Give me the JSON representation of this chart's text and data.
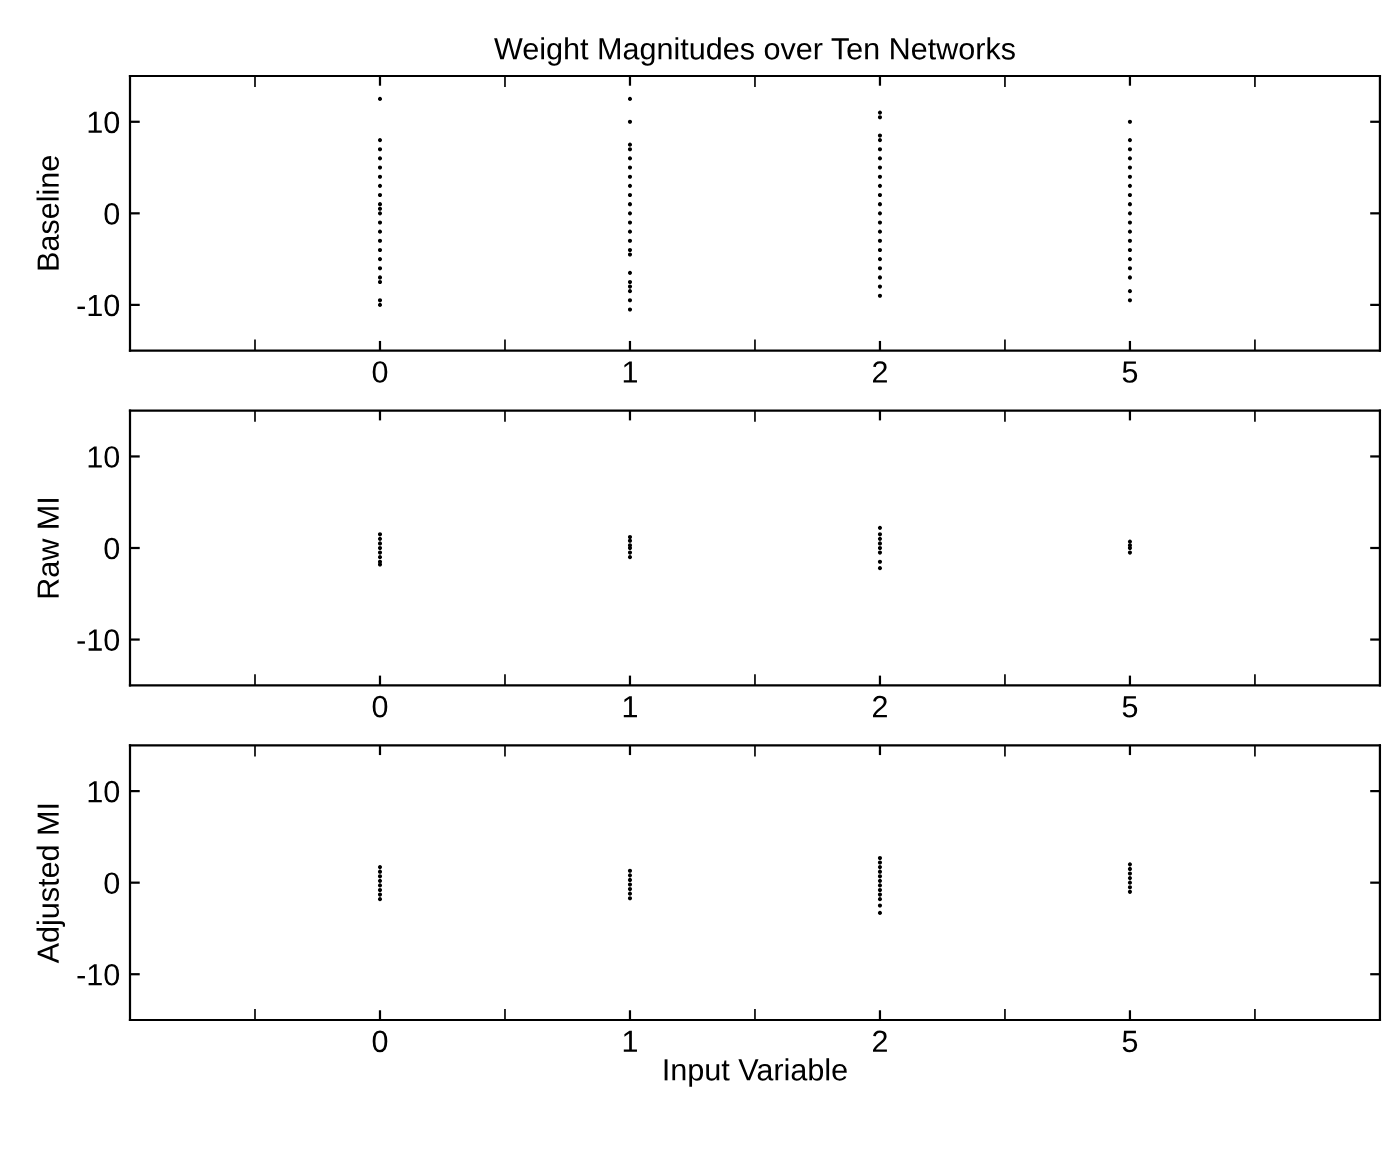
{
  "chart_data": [
    {
      "type": "scatter",
      "title": "Weight Magnitudes over Ten Networks",
      "ylabel": "Baseline",
      "categories": [
        "0",
        "1",
        "2",
        "5"
      ],
      "ylim": [
        -15,
        15
      ],
      "yticks": [
        -10,
        0,
        10
      ],
      "grid": false,
      "legend": false,
      "marker": "circle",
      "series": [
        {
          "color": "#000000",
          "x": [
            "0",
            "0",
            "0",
            "0",
            "0",
            "0",
            "0",
            "0",
            "0",
            "0",
            "0",
            "0",
            "0",
            "0",
            "0",
            "0",
            "0",
            "0",
            "0",
            "0",
            "0",
            "1",
            "1",
            "1",
            "1",
            "1",
            "1",
            "1",
            "1",
            "1",
            "1",
            "1",
            "1",
            "1",
            "1",
            "1",
            "1",
            "1",
            "1",
            "1",
            "1",
            "1",
            "1",
            "2",
            "2",
            "2",
            "2",
            "2",
            "2",
            "2",
            "2",
            "2",
            "2",
            "2",
            "2",
            "2",
            "2",
            "2",
            "2",
            "2",
            "2",
            "2",
            "2",
            "2",
            "5",
            "5",
            "5",
            "5",
            "5",
            "5",
            "5",
            "5",
            "5",
            "5",
            "5",
            "5",
            "5",
            "5",
            "5",
            "5",
            "5",
            "5",
            "5"
          ],
          "values": [
            12.5,
            8,
            7,
            6,
            5,
            4,
            3,
            2,
            1,
            0.5,
            0,
            -1,
            -2,
            -3,
            -4,
            -5,
            -6,
            -7,
            -7.5,
            -9.5,
            -10,
            12.5,
            10,
            7.5,
            7,
            6,
            5,
            4,
            3,
            2,
            1,
            0,
            -1,
            -2,
            -3,
            -4,
            -4.5,
            -6.5,
            -7.5,
            -8,
            -8.5,
            -9.5,
            -10.5,
            11,
            10.5,
            8.5,
            8,
            7,
            6,
            5,
            4,
            3,
            2,
            1,
            0,
            -1,
            -2,
            -3,
            -4,
            -5,
            -6,
            -7,
            -8,
            -9,
            10,
            8,
            7,
            6,
            5,
            4,
            3,
            2,
            1,
            0,
            -1,
            -2,
            -3,
            -4,
            -5,
            -6,
            -7,
            -8.5,
            -9.5
          ]
        }
      ]
    },
    {
      "type": "scatter",
      "ylabel": "Raw MI",
      "categories": [
        "0",
        "1",
        "2",
        "5"
      ],
      "ylim": [
        -15,
        15
      ],
      "yticks": [
        -10,
        0,
        10
      ],
      "grid": false,
      "legend": false,
      "marker": "circle",
      "series": [
        {
          "color": "#000000",
          "x": [
            "0",
            "0",
            "0",
            "0",
            "0",
            "0",
            "0",
            "0",
            "1",
            "1",
            "1",
            "1",
            "1",
            "1",
            "2",
            "2",
            "2",
            "2",
            "2",
            "2",
            "2",
            "2",
            "5",
            "5",
            "5",
            "5"
          ],
          "values": [
            1.5,
            1,
            0.5,
            0,
            -0.5,
            -1,
            -1.5,
            -1.8,
            1.2,
            0.8,
            0.3,
            0,
            -0.5,
            -1,
            2.2,
            1.5,
            1,
            0.5,
            0,
            -0.5,
            -1.5,
            -2.2,
            0.7,
            0.3,
            0,
            -0.5
          ]
        }
      ]
    },
    {
      "type": "scatter",
      "ylabel": "Adjusted MI",
      "xlabel": "Input Variable",
      "categories": [
        "0",
        "1",
        "2",
        "5"
      ],
      "ylim": [
        -15,
        15
      ],
      "yticks": [
        -10,
        0,
        10
      ],
      "grid": false,
      "legend": false,
      "marker": "circle",
      "series": [
        {
          "color": "#000000",
          "x": [
            "0",
            "0",
            "0",
            "0",
            "0",
            "0",
            "0",
            "0",
            "1",
            "1",
            "1",
            "1",
            "1",
            "1",
            "1",
            "2",
            "2",
            "2",
            "2",
            "2",
            "2",
            "2",
            "2",
            "2",
            "2",
            "2",
            "2",
            "5",
            "5",
            "5",
            "5",
            "5",
            "5",
            "5"
          ],
          "values": [
            1.7,
            1.2,
            0.7,
            0.2,
            -0.3,
            -0.8,
            -1.3,
            -1.8,
            1.3,
            0.8,
            0.3,
            -0.2,
            -0.7,
            -1.2,
            -1.7,
            2.7,
            2.2,
            1.7,
            1.2,
            0.7,
            0.2,
            -0.3,
            -0.8,
            -1.3,
            -1.8,
            -2.5,
            -3.3,
            2,
            1.5,
            1,
            0.5,
            0,
            -0.5,
            -1
          ]
        }
      ]
    }
  ]
}
